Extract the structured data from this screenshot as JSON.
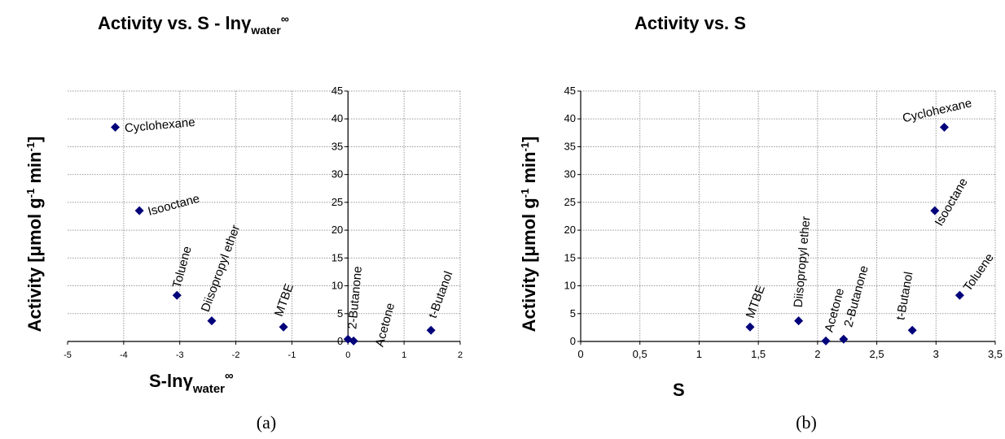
{
  "chart_data": [
    {
      "type": "scatter",
      "panel": "a",
      "caption": "(a)",
      "title": {
        "main": "Activity vs. S - ln",
        "gamma": "γ",
        "sub": "water",
        "sup": "∞"
      },
      "xlabel": {
        "main": "S-ln",
        "gamma": "γ",
        "sub": "water",
        "sup": "∞"
      },
      "ylabel": {
        "main": "Activity [μmol g",
        "sup1": "-1",
        "mid": " min",
        "sup2": "-1",
        "end": "]"
      },
      "xlim": [
        -5,
        2
      ],
      "ylim": [
        0,
        45
      ],
      "xticks": [
        "-5",
        "-4",
        "-3",
        "-2",
        "-1",
        "0",
        "1",
        "2"
      ],
      "yticks": [
        "0",
        "5",
        "10",
        "15",
        "20",
        "25",
        "30",
        "35",
        "40",
        "45"
      ],
      "marker_color": "#00007a",
      "points": [
        {
          "label": "Cyclohexane",
          "x": -4.15,
          "y": 38.5
        },
        {
          "label": "Isooctane",
          "x": -3.72,
          "y": 23.5
        },
        {
          "label": "Toluene",
          "x": -3.05,
          "y": 8.3
        },
        {
          "label": "Diisopropyl ether",
          "x": -2.43,
          "y": 3.7
        },
        {
          "label": "MTBE",
          "x": -1.15,
          "y": 2.6
        },
        {
          "label": "2-Butanone",
          "x": 0.0,
          "y": 0.4
        },
        {
          "label": "Acetone",
          "x": 0.1,
          "y": 0.1
        },
        {
          "label": "t-Butanol",
          "x": 1.48,
          "y": 2.0
        }
      ]
    },
    {
      "type": "scatter",
      "panel": "b",
      "caption": "(b)",
      "title": {
        "main": "Activity vs. S"
      },
      "xlabel": {
        "main": "S"
      },
      "ylabel": {
        "main": "Activity [μmol g",
        "sup1": "-1",
        "mid": " min",
        "sup2": "-1",
        "end": "]"
      },
      "xlim": [
        0,
        3.5
      ],
      "ylim": [
        0,
        45
      ],
      "xticks": [
        "0",
        "0,5",
        "1",
        "1,5",
        "2",
        "2,5",
        "3",
        "3,5"
      ],
      "yticks": [
        "0",
        "5",
        "10",
        "15",
        "20",
        "25",
        "30",
        "35",
        "40",
        "45"
      ],
      "marker_color": "#00007a",
      "points": [
        {
          "label": "MTBE",
          "x": 1.43,
          "y": 2.6
        },
        {
          "label": "Diisopropyl ether",
          "x": 1.84,
          "y": 3.7
        },
        {
          "label": "Acetone",
          "x": 2.07,
          "y": 0.1
        },
        {
          "label": "2-Butanone",
          "x": 2.22,
          "y": 0.4
        },
        {
          "label": "t-Butanol",
          "x": 2.8,
          "y": 2.0
        },
        {
          "label": "Isooctane",
          "x": 2.99,
          "y": 23.5
        },
        {
          "label": "Cyclohexane",
          "x": 3.07,
          "y": 38.5
        },
        {
          "label": "Toluene",
          "x": 3.2,
          "y": 8.3
        }
      ]
    }
  ]
}
